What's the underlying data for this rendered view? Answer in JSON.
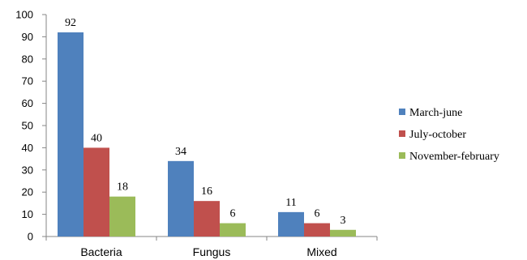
{
  "chart_data": {
    "type": "bar",
    "categories": [
      "Bacteria",
      "Fungus",
      "Mixed"
    ],
    "series": [
      {
        "name": "March-june",
        "values": [
          92,
          34,
          11
        ],
        "color": "#4F81BD"
      },
      {
        "name": "July-october",
        "values": [
          40,
          16,
          6
        ],
        "color": "#C0504D"
      },
      {
        "name": "November-february",
        "values": [
          18,
          6,
          3
        ],
        "color": "#9BBB59"
      }
    ],
    "title": "",
    "xlabel": "",
    "ylabel": "",
    "ylim": [
      0,
      100
    ],
    "yticks": [
      0,
      10,
      20,
      30,
      40,
      50,
      60,
      70,
      80,
      90,
      100
    ],
    "grid": false,
    "legend": "right",
    "data_labels": true
  }
}
